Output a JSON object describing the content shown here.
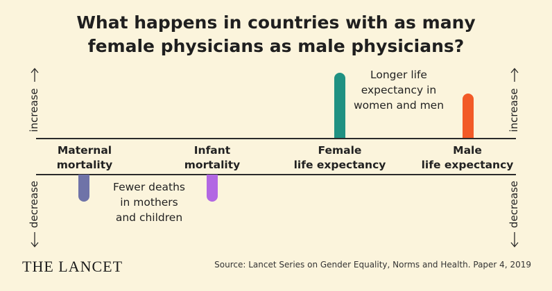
{
  "title": {
    "line1": "What happens in countries with as many",
    "line2": "female physicians as male physicians?"
  },
  "axis": {
    "increase": "increase",
    "decrease": "decrease"
  },
  "chart_data": {
    "type": "bar",
    "categories": [
      {
        "line1": "Maternal",
        "line2": "mortality"
      },
      {
        "line1": "Infant",
        "line2": "mortality"
      },
      {
        "line1": "Female",
        "line2": "life expectancy"
      },
      {
        "line1": "Male",
        "line2": "life expectancy"
      }
    ],
    "values": [
      -0.42,
      -0.42,
      1.0,
      0.68
    ],
    "direction": [
      "decrease",
      "decrease",
      "increase",
      "increase"
    ],
    "colors": [
      "#6f73a8",
      "#b267e3",
      "#1f9182",
      "#f25a27"
    ],
    "annotations": {
      "decrease": [
        "Fewer deaths",
        "in mothers",
        "and children"
      ],
      "increase": [
        "Longer life",
        "expectancy in",
        "women and men"
      ]
    }
  },
  "footer": {
    "logo": "THE LANCET",
    "source": "Source: Lancet Series on Gender Equality, Norms and Health. Paper 4, 2019"
  }
}
